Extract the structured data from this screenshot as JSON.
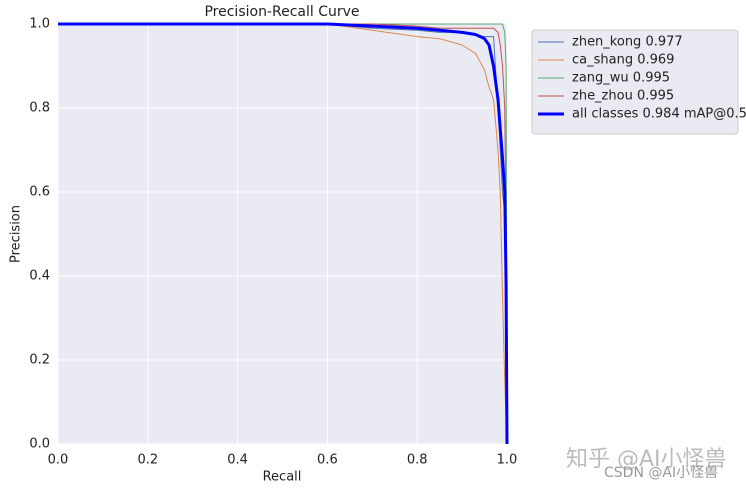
{
  "chart_data": {
    "type": "line",
    "title": "Precision-Recall Curve",
    "xlabel": "Recall",
    "ylabel": "Precision",
    "x": [
      0,
      0.6,
      0.7,
      0.8,
      0.85,
      0.9,
      0.93,
      0.95,
      0.96,
      0.97,
      0.98,
      0.985,
      0.99,
      0.995,
      0.998,
      1.0
    ],
    "series": [
      {
        "name": "zhen_kong 0.977",
        "color": "#4c72b0",
        "width": 1,
        "values": [
          1,
          1,
          0.99,
          0.985,
          0.98,
          0.98,
          0.975,
          0.97,
          0.97,
          0.97,
          0.8,
          0.7,
          0.6,
          0.55,
          0.4,
          0
        ]
      },
      {
        "name": "ca_shang 0.969",
        "color": "#dd8452",
        "width": 1,
        "values": [
          1,
          1,
          0.985,
          0.97,
          0.965,
          0.95,
          0.93,
          0.89,
          0.85,
          0.82,
          0.7,
          0.6,
          0.35,
          0.15,
          0.05,
          0
        ]
      },
      {
        "name": "zang_wu 0.995",
        "color": "#55a868",
        "width": 1,
        "values": [
          1,
          1,
          1,
          1,
          1,
          1,
          1,
          1,
          1,
          1,
          1,
          1,
          1,
          0.98,
          0.9,
          0
        ]
      },
      {
        "name": "zhe_zhou 0.995",
        "color": "#c44e52",
        "width": 1,
        "values": [
          1,
          1,
          1,
          0.995,
          0.99,
          0.99,
          0.99,
          0.99,
          0.99,
          0.99,
          0.98,
          0.95,
          0.9,
          0.8,
          0.5,
          0
        ]
      },
      {
        "name": "all classes 0.984 mAP@0.5",
        "color": "#0000ff",
        "width": 3,
        "values": [
          1,
          1,
          0.995,
          0.99,
          0.985,
          0.98,
          0.975,
          0.965,
          0.95,
          0.9,
          0.82,
          0.75,
          0.68,
          0.6,
          0.38,
          0
        ]
      }
    ],
    "xlim": [
      0,
      1
    ],
    "ylim": [
      0,
      1
    ],
    "xticks": [
      {
        "value": 0,
        "label": "0.0"
      },
      0.2,
      0.4,
      0.6,
      0.8,
      {
        "value": 1,
        "label": "1.0"
      }
    ],
    "yticks": [
      {
        "value": 0,
        "label": "0.0"
      },
      0.2,
      0.4,
      0.6,
      0.8,
      {
        "value": 1,
        "label": "1.0"
      }
    ],
    "grid": true,
    "background": "#eaeaf2",
    "watermarks": [
      "知乎 @AI小怪兽",
      "CSDN @AI小怪兽"
    ]
  }
}
